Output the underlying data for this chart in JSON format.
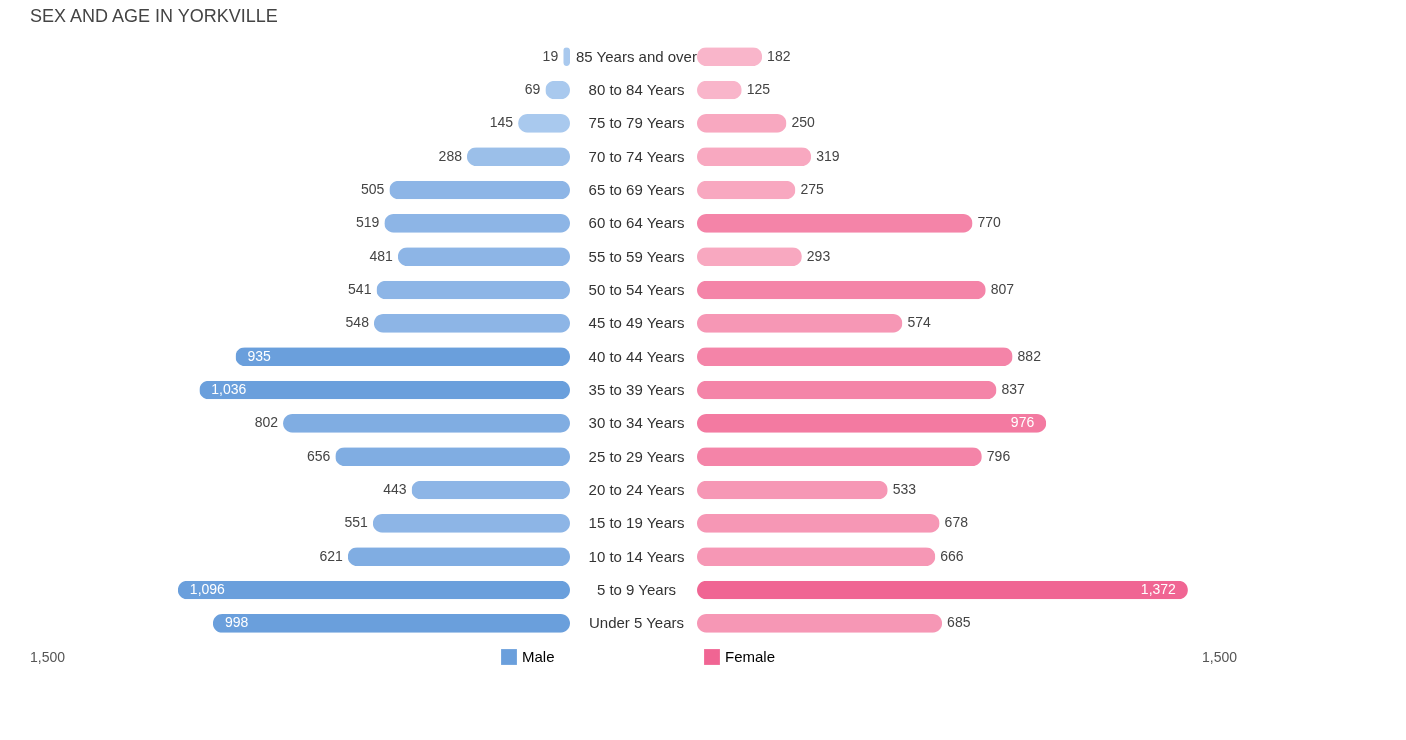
{
  "chart_data": [
    {
      "type": "bar",
      "orientation": "horizontal",
      "title": "SEX AND AGE IN YORKVILLE",
      "categories": [
        "85 Years and over",
        "80 to 84 Years",
        "75 to 79 Years",
        "70 to 74 Years",
        "65 to 69 Years",
        "60 to 64 Years",
        "55 to 59 Years",
        "50 to 54 Years",
        "45 to 49 Years",
        "40 to 44 Years",
        "35 to 39 Years",
        "30 to 34 Years",
        "25 to 29 Years",
        "20 to 24 Years",
        "15 to 19 Years",
        "10 to 14 Years",
        "5 to 9 Years",
        "Under 5 Years"
      ],
      "series": [
        {
          "name": "Male",
          "color": "#6a9fdc",
          "colors": [
            "#a9c9ee",
            "#a9c9ee",
            "#a9c9ee",
            "#9bbfe9",
            "#8db5e6",
            "#8db5e6",
            "#8db5e6",
            "#8db5e6",
            "#8db5e6",
            "#6a9fdc",
            "#6a9fdc",
            "#80ade2",
            "#80ade2",
            "#8db5e6",
            "#8db5e6",
            "#80ade2",
            "#6a9fdc",
            "#6a9fdc"
          ],
          "values": [
            19,
            69,
            145,
            288,
            505,
            519,
            481,
            541,
            548,
            935,
            1036,
            802,
            656,
            443,
            551,
            621,
            1096,
            998
          ],
          "value_labels": [
            "19",
            "69",
            "145",
            "288",
            "505",
            "519",
            "481",
            "541",
            "548",
            "935",
            "1,036",
            "802",
            "656",
            "443",
            "551",
            "621",
            "1,096",
            "998"
          ]
        }
      ],
      "annotations": [
        "1,500"
      ],
      "legend": "bottom",
      "tick_labels": "y"
    },
    {
      "type": "bar",
      "orientation": "horizontal",
      "categories": [
        null,
        null,
        null,
        null,
        null,
        null,
        null,
        null,
        null,
        null,
        null,
        null,
        null,
        null,
        null,
        null,
        null,
        null
      ],
      "series": [
        {
          "name": "Female",
          "color": "#f06593",
          "colors": [
            "#f9b5ca",
            "#f9b5ca",
            "#f8a8c0",
            "#f8a8c0",
            "#f8a8c0",
            "#f484a8",
            "#f8a8c0",
            "#f484a8",
            "#f697b5",
            "#f484a8",
            "#f484a8",
            "#f37aa1",
            "#f484a8",
            "#f697b5",
            "#f697b5",
            "#f697b5",
            "#f06593",
            "#f697b5"
          ],
          "values": [
            182,
            125,
            250,
            319,
            275,
            770,
            293,
            807,
            574,
            882,
            837,
            976,
            796,
            533,
            678,
            666,
            1372,
            685
          ],
          "value_labels": [
            "182",
            "125",
            "250",
            "319",
            "275",
            "770",
            "293",
            "807",
            "574",
            "882",
            "837",
            "976",
            "796",
            "533",
            "678",
            "666",
            "1,372",
            "685"
          ]
        }
      ],
      "annotations": [
        "1,500"
      ],
      "legend": "bottom",
      "tick_labels": false
    }
  ]
}
